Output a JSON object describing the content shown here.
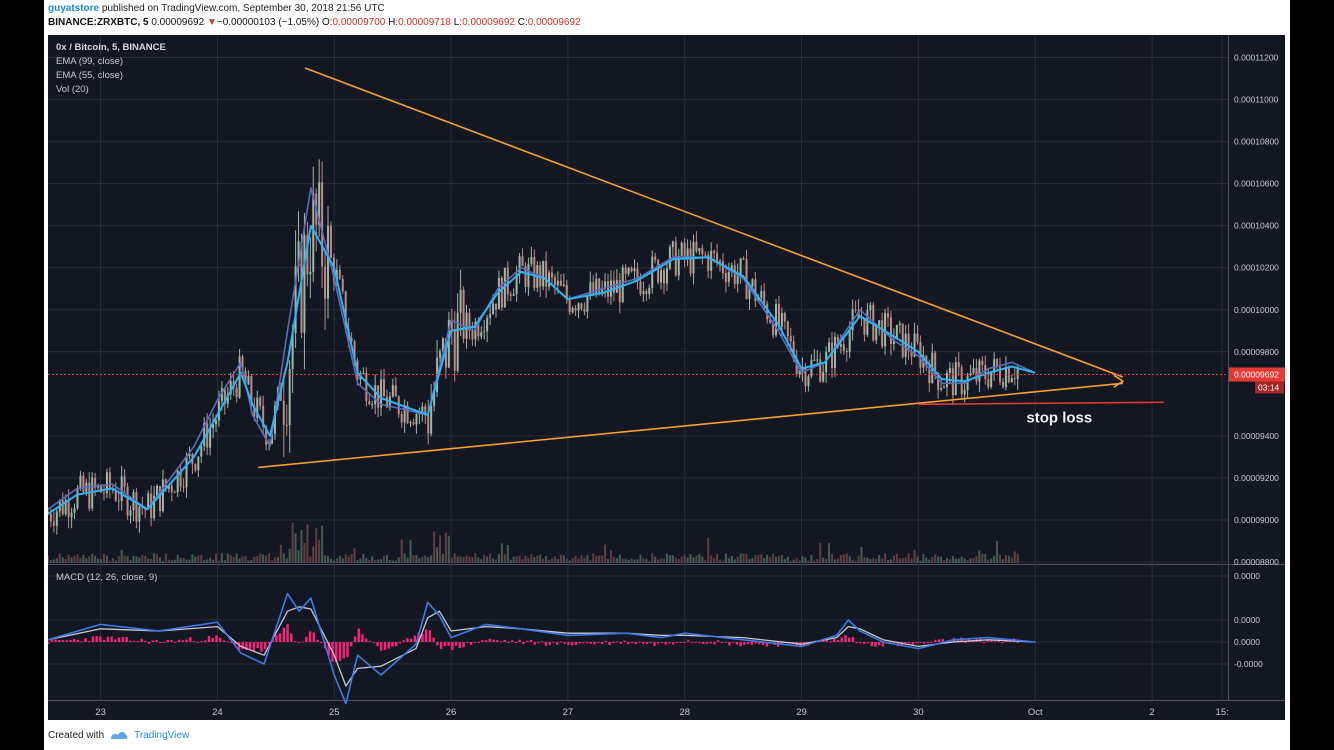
{
  "header": {
    "user": "guyatstore",
    "published": "published on TradingView.com, September 30, 2018 21:56 UTC",
    "symbol": "BINANCE:ZRXBTC, 5",
    "last": "0.00009692",
    "change_arrow": "▼",
    "change": "−0.00000103 (−1.05%)",
    "o_label": "O:",
    "o": "0.00009700",
    "h_label": "H:",
    "h": "0.00009718",
    "l_label": "L:",
    "l": "0.00009692",
    "c_label": "C:",
    "c": "0.00009692"
  },
  "legend": {
    "title": "0x / Bitcoin, 5, BINANCE",
    "ema1": "EMA (99, close)",
    "ema2": "EMA (55, close)",
    "vol": "Vol (20)",
    "macd": "MACD (12, 26, close, 9)"
  },
  "price_label": "0.00009692",
  "countdown": "03:14",
  "stop_loss_label": "stop loss",
  "footer": {
    "created": "Created with",
    "brand": "TradingView"
  },
  "colors": {
    "background": "#131722",
    "grid": "#2a2e39",
    "up": "#9fb8a3",
    "down": "#c08a86",
    "ema_fast": "#5c6bc0",
    "ema_slow": "#29b6f6",
    "trendline": "#f7a032",
    "stop_loss": "#e53935",
    "price_line": "#e53935",
    "macd_line": "#3b7be8",
    "signal_line": "#c8c8d0",
    "histogram": "#ff1f75"
  },
  "chart_data": [
    {
      "type": "line",
      "panel": "price",
      "y_ticks": [
        "0.00011200",
        "0.00011000",
        "0.00010800",
        "0.00010600",
        "0.00010400",
        "0.00010200",
        "0.00010000",
        "0.00009800",
        "0.00009692",
        "0.00009400",
        "0.00009200",
        "0.00009000",
        "0.00008800"
      ],
      "ylim": [
        8.8e-05,
        0.0001125
      ],
      "x_ticks": [
        "23",
        "24",
        "25",
        "26",
        "27",
        "28",
        "29",
        "30",
        "Oct",
        "2",
        "15:"
      ],
      "x_tick_days": [
        23,
        24,
        25,
        26,
        27,
        28,
        29,
        30,
        31,
        32,
        32.6
      ],
      "xlim": [
        22.55,
        32.65
      ],
      "series": [
        {
          "name": "EMA (99, close)",
          "x": [
            22.55,
            22.8,
            23.1,
            23.4,
            23.8,
            24.0,
            24.2,
            24.3,
            24.45,
            24.6,
            24.8,
            25.0,
            25.2,
            25.4,
            25.8,
            26.0,
            26.2,
            26.4,
            26.6,
            26.8,
            27.0,
            27.3,
            27.6,
            27.9,
            28.2,
            28.5,
            28.8,
            29.0,
            29.2,
            29.5,
            29.8,
            30.0,
            30.2,
            30.4,
            30.6,
            30.8,
            31.0
          ],
          "y": [
            9.05e-05,
            9.15e-05,
            9.17e-05,
            9.05e-05,
            9.35e-05,
            9.57e-05,
            9.75e-05,
            9.5e-05,
            9.35e-05,
            9.9e-05,
            0.0001058,
            0.0001015,
            9.65e-05,
            9.55e-05,
            9.5e-05,
            9.95e-05,
            9.9e-05,
            0.000101,
            0.000102,
            0.0001015,
            0.0001005,
            0.000101,
            0.0001015,
            0.0001025,
            0.0001025,
            0.0001015,
            9.9e-05,
            9.7e-05,
            9.75e-05,
            0.0001,
            9.85e-05,
            9.78e-05,
            9.65e-05,
            9.65e-05,
            9.72e-05,
            9.75e-05,
            9.7e-05
          ]
        },
        {
          "name": "EMA (55, close)",
          "x": [
            22.55,
            22.8,
            23.1,
            23.4,
            23.8,
            24.0,
            24.2,
            24.3,
            24.45,
            24.6,
            24.8,
            25.0,
            25.2,
            25.4,
            25.8,
            26.0,
            26.2,
            26.4,
            26.6,
            26.8,
            27.0,
            27.3,
            27.6,
            27.9,
            28.2,
            28.5,
            28.8,
            29.0,
            29.2,
            29.5,
            29.8,
            30.0,
            30.2,
            30.4,
            30.6,
            30.8,
            31.0
          ],
          "y": [
            9.03e-05,
            9.12e-05,
            9.15e-05,
            9.05e-05,
            9.3e-05,
            9.5e-05,
            9.7e-05,
            9.55e-05,
            9.4e-05,
            9.75e-05,
            0.000104,
            0.000102,
            9.7e-05,
            9.58e-05,
            9.5e-05,
            9.9e-05,
            9.92e-05,
            0.0001008,
            0.0001018,
            0.0001015,
            0.0001005,
            0.0001008,
            0.0001014,
            0.0001024,
            0.0001025,
            0.0001016,
            9.93e-05,
            9.72e-05,
            9.75e-05,
            9.97e-05,
            9.87e-05,
            9.8e-05,
            9.67e-05,
            9.66e-05,
            9.7e-05,
            9.73e-05,
            9.7e-05
          ]
        }
      ],
      "candles_summary": {
        "high": 0.0001106,
        "low": 8.92e-05,
        "last": 9.692e-05
      },
      "annotations": [
        {
          "type": "trendline",
          "from": [
            24.75,
            0.0001115
          ],
          "to": [
            31.75,
            9.68e-05
          ]
        },
        {
          "type": "trendline",
          "from": [
            24.35,
            9.25e-05
          ],
          "to": [
            31.75,
            9.65e-05
          ]
        },
        {
          "type": "stop_loss",
          "from": [
            30.0,
            9.55e-05
          ],
          "to": [
            32.1,
            9.56e-05
          ],
          "label": "stop loss"
        },
        {
          "type": "price_line",
          "y": 9.692e-05
        }
      ]
    },
    {
      "type": "line",
      "panel": "macd",
      "title": "MACD (12, 26, close, 9)",
      "y_ticks": [
        "0.0000",
        "0.0000",
        "0.0000",
        "-0.0000"
      ],
      "series": [
        {
          "name": "MACD",
          "x": [
            22.55,
            23.0,
            23.5,
            24.0,
            24.2,
            24.4,
            24.6,
            24.7,
            24.8,
            25.0,
            25.1,
            25.2,
            25.4,
            25.7,
            25.8,
            25.9,
            26.0,
            26.3,
            26.6,
            27.0,
            27.5,
            27.8,
            28.0,
            28.5,
            29.0,
            29.3,
            29.4,
            29.5,
            29.7,
            30.0,
            30.3,
            30.6,
            31.0
          ],
          "y": [
            0.1,
            0.8,
            0.5,
            0.9,
            -0.5,
            -1.0,
            2.2,
            1.4,
            2.0,
            -1.5,
            -2.8,
            -0.6,
            -1.5,
            -0.1,
            1.8,
            1.2,
            0.2,
            0.8,
            0.6,
            0.3,
            0.4,
            0.2,
            0.4,
            0.1,
            -0.2,
            0.3,
            1.0,
            0.5,
            0.0,
            -0.3,
            0.1,
            0.2,
            0.0
          ]
        },
        {
          "name": "Signal",
          "x": [
            22.55,
            23.0,
            23.5,
            24.0,
            24.2,
            24.4,
            24.6,
            24.7,
            24.8,
            25.0,
            25.1,
            25.2,
            25.4,
            25.7,
            25.8,
            25.9,
            26.0,
            26.3,
            26.6,
            27.0,
            27.5,
            27.8,
            28.0,
            28.5,
            29.0,
            29.3,
            29.4,
            29.5,
            29.7,
            30.0,
            30.3,
            30.6,
            31.0
          ],
          "y": [
            0.1,
            0.6,
            0.5,
            0.7,
            -0.2,
            -0.6,
            1.4,
            1.6,
            1.5,
            -0.6,
            -2.0,
            -1.2,
            -1.1,
            -0.3,
            1.1,
            1.4,
            0.5,
            0.7,
            0.6,
            0.4,
            0.4,
            0.3,
            0.3,
            0.2,
            -0.1,
            0.2,
            0.7,
            0.6,
            0.1,
            -0.2,
            0.0,
            0.1,
            0.0
          ]
        }
      ]
    }
  ]
}
